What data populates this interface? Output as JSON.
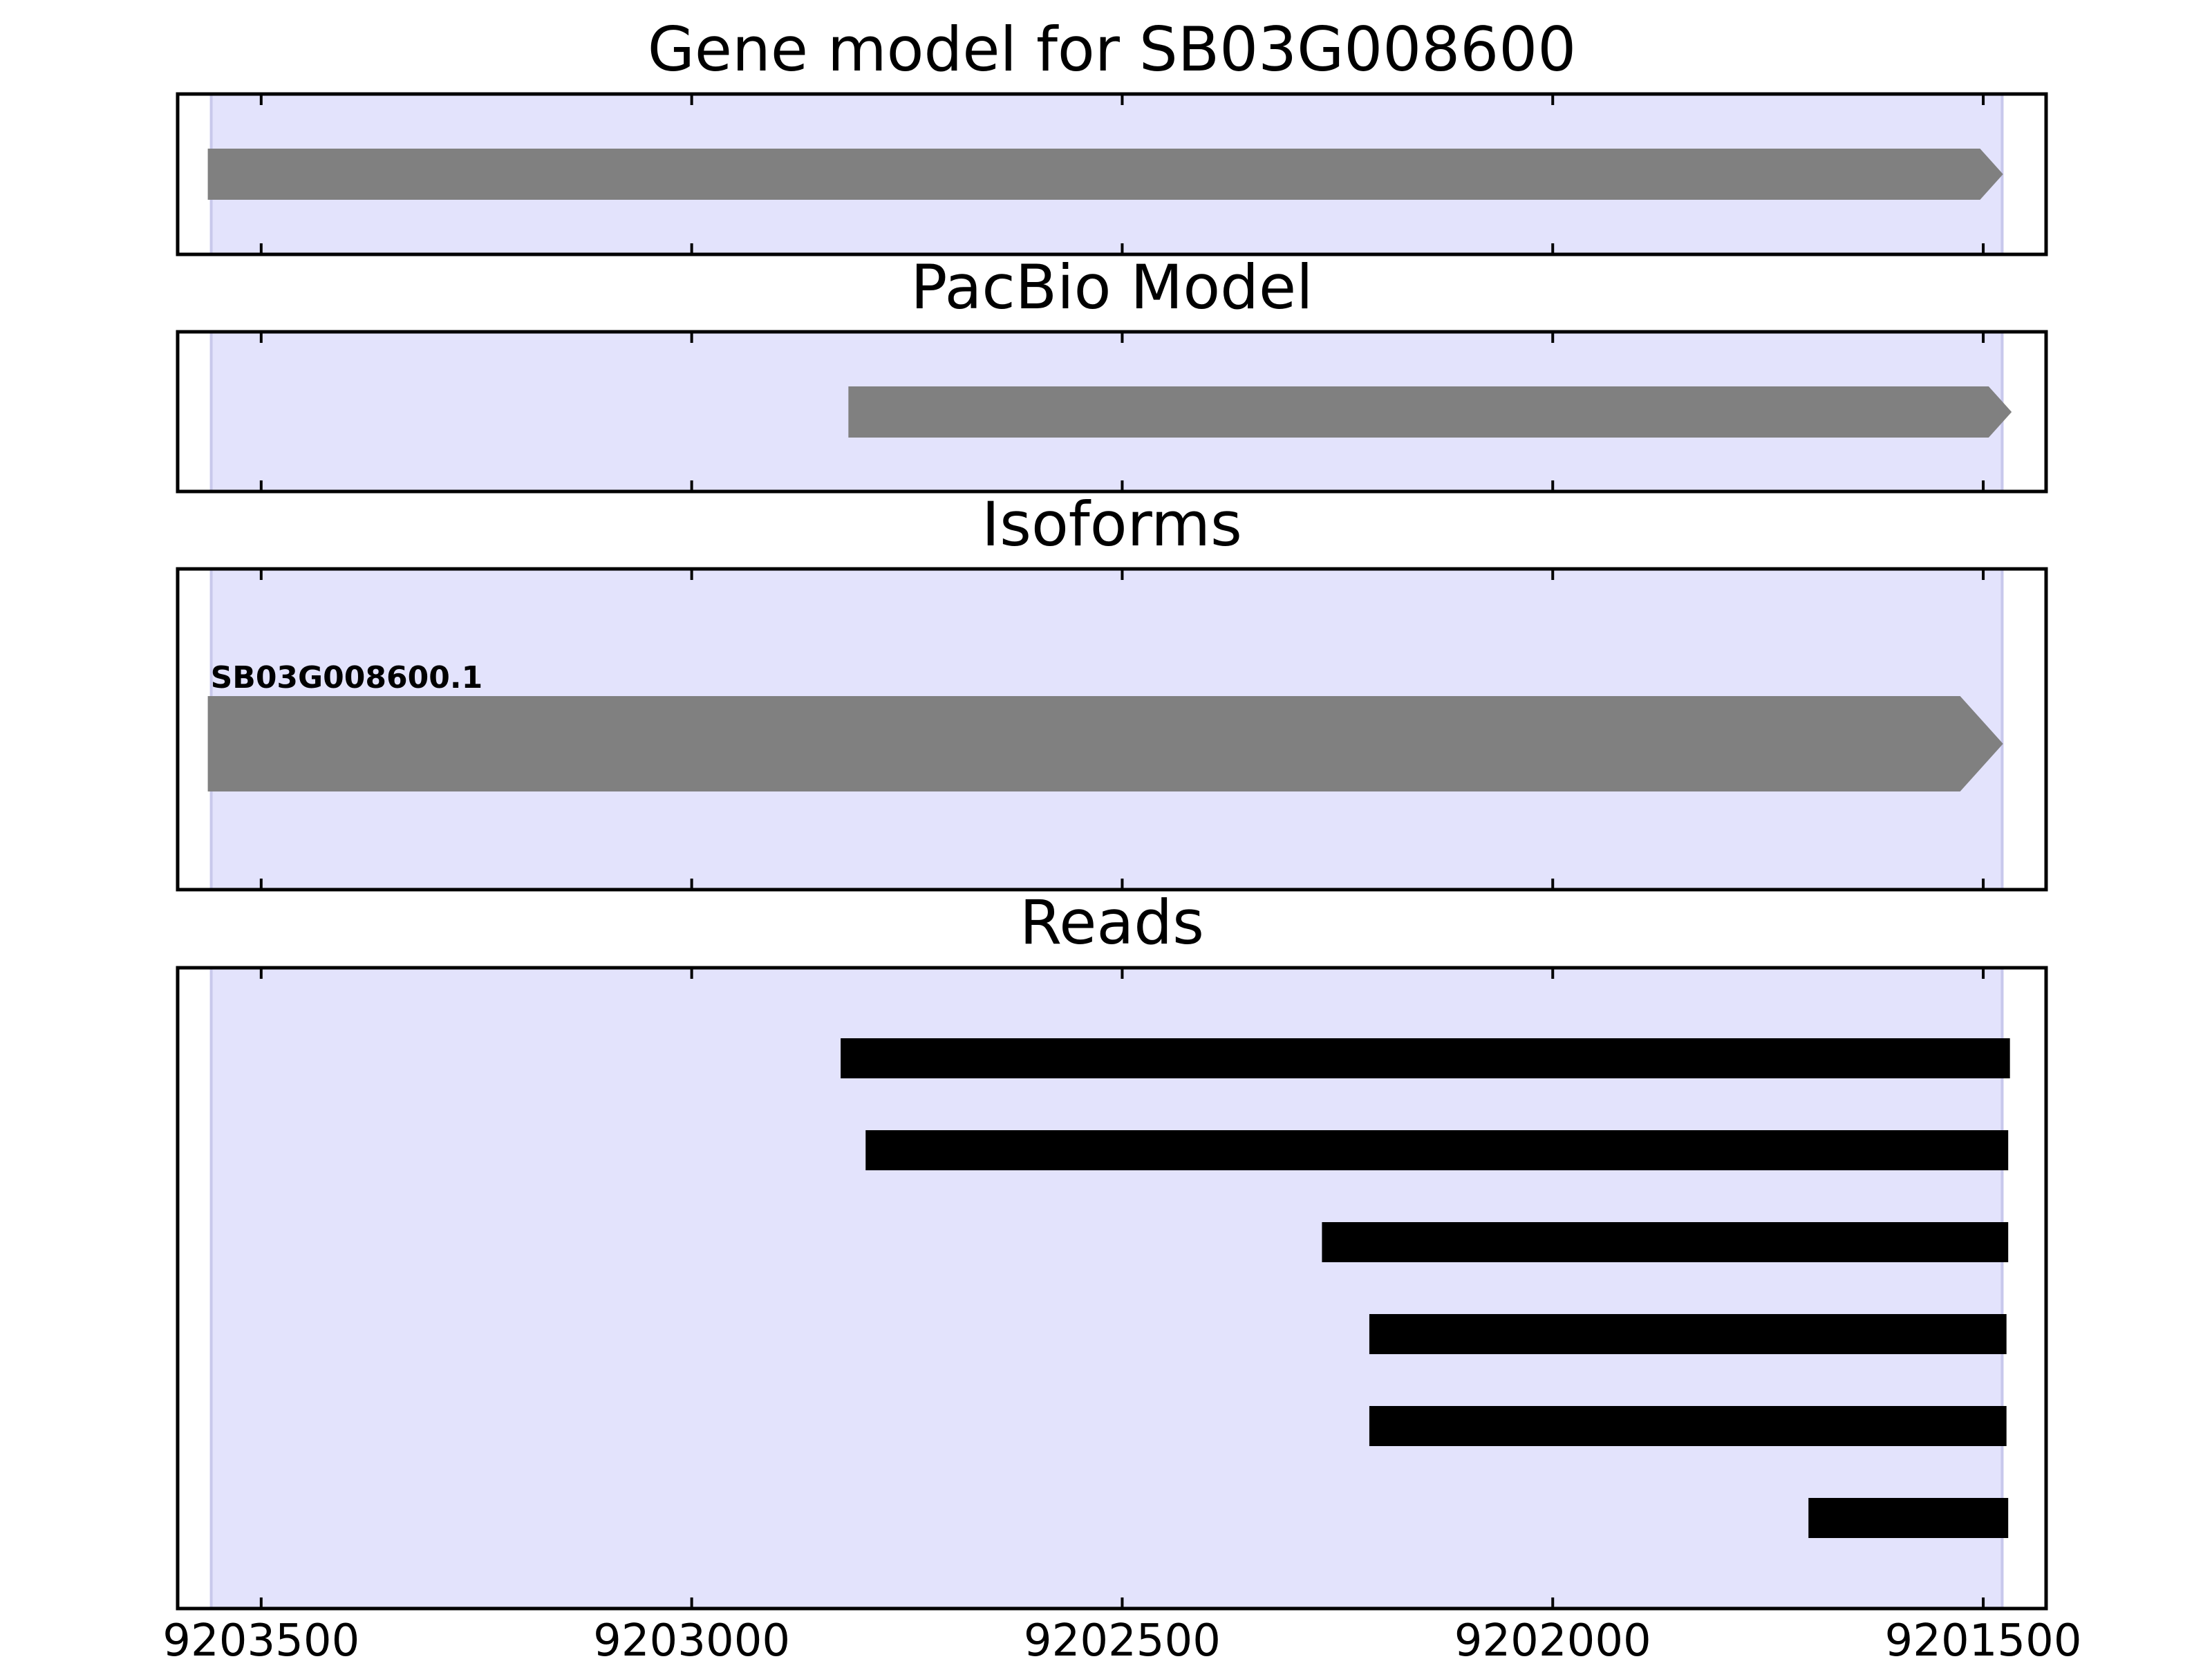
{
  "chart_data": {
    "type": "gene-track",
    "x_axis": {
      "lim": [
        9203597,
        9201427
      ],
      "inverted": true,
      "ticks": [
        9203500,
        9203000,
        9202500,
        9202000,
        9201500
      ],
      "tick_labels": [
        "9203500",
        "9203000",
        "9202500",
        "9202000",
        "9201500"
      ]
    },
    "highlight_region": {
      "start": 9203558,
      "end": 9201478,
      "color": "#e3e3fc"
    },
    "panels": [
      {
        "id": "gene-model",
        "title": "Gene model for SB03G008600",
        "features": [
          {
            "start": 9203562,
            "end": 9201477,
            "type": "arrow",
            "color": "#808080",
            "label": ""
          }
        ]
      },
      {
        "id": "pacbio-model",
        "title": "PacBio Model",
        "features": [
          {
            "start": 9202818,
            "end": 9201467,
            "type": "arrow",
            "color": "#808080",
            "label": ""
          }
        ]
      },
      {
        "id": "isoforms",
        "title": "Isoforms",
        "features": [
          {
            "start": 9203562,
            "end": 9201477,
            "type": "arrow",
            "color": "#808080",
            "label": "SB03G008600.1"
          }
        ]
      },
      {
        "id": "reads",
        "title": "Reads",
        "features": [
          {
            "start": 9202827,
            "end": 9201469,
            "type": "bar",
            "color": "#000000"
          },
          {
            "start": 9202798,
            "end": 9201471,
            "type": "bar",
            "color": "#000000"
          },
          {
            "start": 9202268,
            "end": 9201471,
            "type": "bar",
            "color": "#000000"
          },
          {
            "start": 9202213,
            "end": 9201473,
            "type": "bar",
            "color": "#000000"
          },
          {
            "start": 9202213,
            "end": 9201473,
            "type": "bar",
            "color": "#000000"
          },
          {
            "start": 9201703,
            "end": 9201471,
            "type": "bar",
            "color": "#000000"
          }
        ]
      }
    ]
  }
}
